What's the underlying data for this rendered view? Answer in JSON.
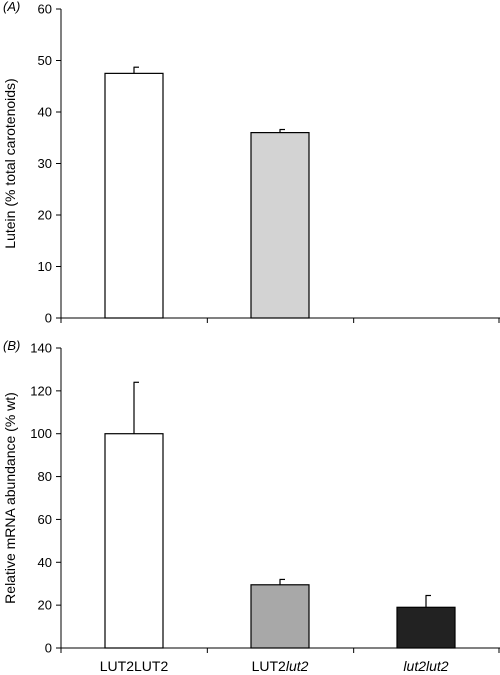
{
  "chart_data": [
    {
      "type": "bar",
      "panel_label": "(A)",
      "ylabel": "Lutein (% total carotenoids)",
      "ylim": [
        0,
        60
      ],
      "yticks": [
        0,
        10,
        20,
        30,
        40,
        50,
        60
      ],
      "categories": [
        "LUT2LUT2",
        "LUT2lut2",
        "lut2lut2"
      ],
      "values": [
        47.5,
        36,
        null
      ],
      "errors": [
        1.2,
        0.6,
        null
      ],
      "bar_colors": [
        "#ffffff",
        "#d3d3d3",
        null
      ],
      "grid": false
    },
    {
      "type": "bar",
      "panel_label": "(B)",
      "ylabel": "Relative mRNA abundance (% wt)",
      "ylim": [
        0,
        140
      ],
      "yticks": [
        0,
        20,
        40,
        60,
        80,
        100,
        120,
        140
      ],
      "categories": [
        "LUT2LUT2",
        "LUT2lut2",
        "lut2lut2"
      ],
      "values": [
        100,
        29.5,
        19
      ],
      "errors": [
        24,
        2.5,
        5.5
      ],
      "bar_colors": [
        "#ffffff",
        "#a8a8a8",
        "#222222"
      ],
      "grid": false
    }
  ],
  "category_labels": [
    {
      "parts": [
        {
          "text": "LUT2LUT2",
          "italic": false
        }
      ]
    },
    {
      "parts": [
        {
          "text": "LUT2",
          "italic": false
        },
        {
          "text": "lut2",
          "italic": true
        }
      ]
    },
    {
      "parts": [
        {
          "text": "lut2lut2",
          "italic": true
        }
      ]
    }
  ]
}
